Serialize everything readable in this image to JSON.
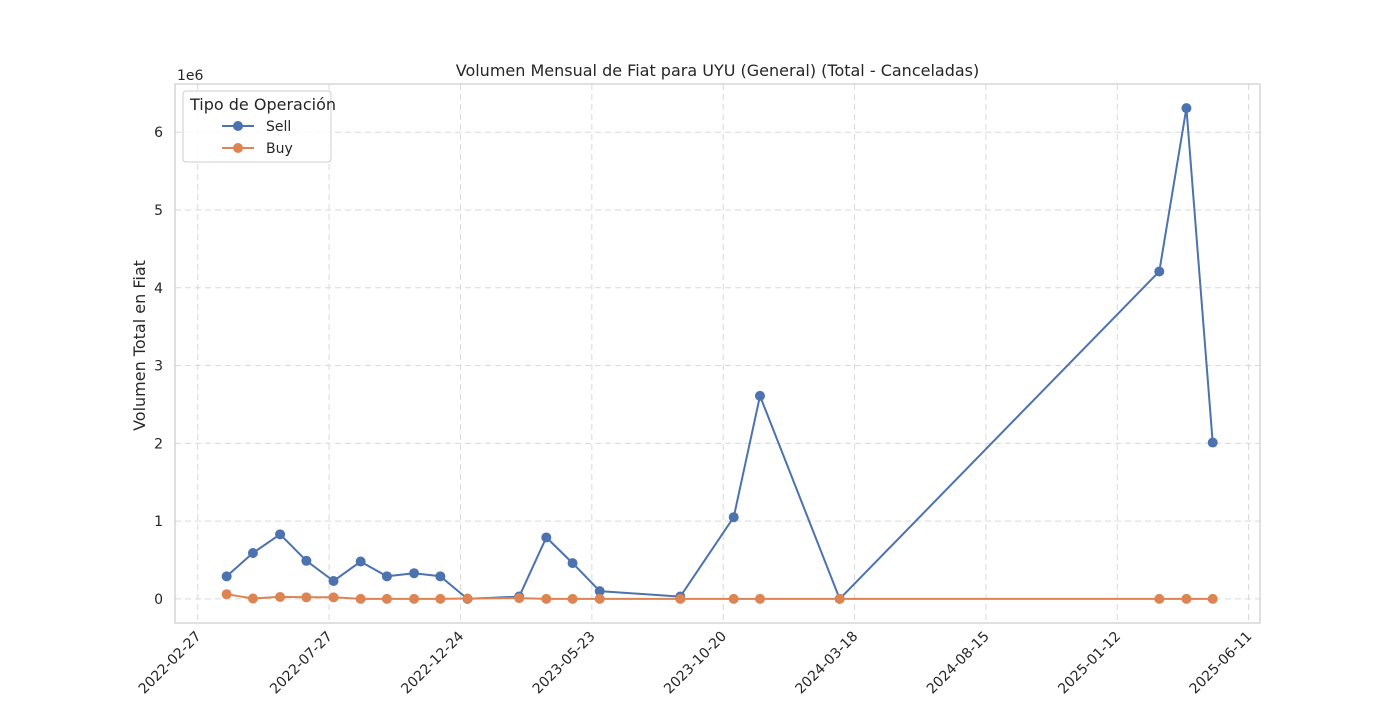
{
  "chart_data": {
    "type": "line",
    "title": "Volumen Mensual de Fiat para UYU (General) (Total - Canceladas)",
    "xlabel": "",
    "ylabel": "Volumen Total en Fiat",
    "y_offset_label": "1e6",
    "y_scale_factor": 1000000,
    "ylim": [
      -310000,
      6620000
    ],
    "xlim": [
      "2022-02-01",
      "2025-06-24"
    ],
    "x_ticks": [
      "2022-02-27",
      "2022-07-27",
      "2022-12-24",
      "2023-05-23",
      "2023-10-20",
      "2024-03-18",
      "2024-08-15",
      "2025-01-12",
      "2025-06-11"
    ],
    "y_ticks": [
      0,
      1,
      2,
      3,
      4,
      5,
      6
    ],
    "grid": true,
    "legend": {
      "title": "Tipo de Operación",
      "placement": "upper left"
    },
    "series": [
      {
        "name": "Sell",
        "color": "#4c72b0",
        "points": [
          {
            "x": "2022-04-01",
            "y": 290000
          },
          {
            "x": "2022-05-01",
            "y": 590000
          },
          {
            "x": "2022-06-01",
            "y": 830000
          },
          {
            "x": "2022-07-01",
            "y": 490000
          },
          {
            "x": "2022-08-01",
            "y": 230000
          },
          {
            "x": "2022-09-01",
            "y": 480000
          },
          {
            "x": "2022-10-01",
            "y": 290000
          },
          {
            "x": "2022-11-01",
            "y": 330000
          },
          {
            "x": "2022-12-01",
            "y": 290000
          },
          {
            "x": "2023-01-01",
            "y": 0
          },
          {
            "x": "2023-03-01",
            "y": 30000
          },
          {
            "x": "2023-04-01",
            "y": 790000
          },
          {
            "x": "2023-05-01",
            "y": 460000
          },
          {
            "x": "2023-06-01",
            "y": 100000
          },
          {
            "x": "2023-09-01",
            "y": 30000
          },
          {
            "x": "2023-11-01",
            "y": 1050000
          },
          {
            "x": "2023-12-01",
            "y": 2610000
          },
          {
            "x": "2024-03-01",
            "y": 0
          },
          {
            "x": "2025-03-01",
            "y": 4210000
          },
          {
            "x": "2025-04-01",
            "y": 6310000
          },
          {
            "x": "2025-05-01",
            "y": 2010000
          }
        ]
      },
      {
        "name": "Buy",
        "color": "#dd8452",
        "points": [
          {
            "x": "2022-04-01",
            "y": 60000
          },
          {
            "x": "2022-05-01",
            "y": 5000
          },
          {
            "x": "2022-06-01",
            "y": 25000
          },
          {
            "x": "2022-07-01",
            "y": 20000
          },
          {
            "x": "2022-08-01",
            "y": 20000
          },
          {
            "x": "2022-09-01",
            "y": 0
          },
          {
            "x": "2022-10-01",
            "y": 0
          },
          {
            "x": "2022-11-01",
            "y": 0
          },
          {
            "x": "2022-12-01",
            "y": 0
          },
          {
            "x": "2023-01-01",
            "y": 5000
          },
          {
            "x": "2023-03-01",
            "y": 10000
          },
          {
            "x": "2023-04-01",
            "y": 0
          },
          {
            "x": "2023-05-01",
            "y": 0
          },
          {
            "x": "2023-06-01",
            "y": 0
          },
          {
            "x": "2023-09-01",
            "y": 0
          },
          {
            "x": "2023-11-01",
            "y": 0
          },
          {
            "x": "2023-12-01",
            "y": 0
          },
          {
            "x": "2024-03-01",
            "y": 0
          },
          {
            "x": "2025-03-01",
            "y": 0
          },
          {
            "x": "2025-04-01",
            "y": 0
          },
          {
            "x": "2025-05-01",
            "y": 0
          }
        ]
      }
    ]
  }
}
